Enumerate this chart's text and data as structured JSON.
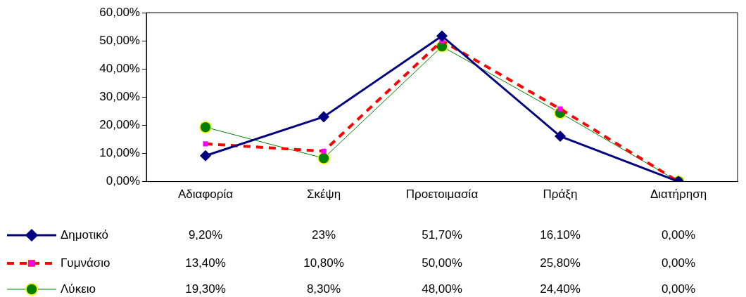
{
  "chart_data": {
    "type": "line",
    "categories": [
      "Αδιαφορία",
      "Σκέψη",
      "Προετοιμασία",
      "Πράξη",
      "Διατήρηση"
    ],
    "ylim": [
      0,
      60
    ],
    "yticks": [
      {
        "value": 0,
        "label": "0,00%"
      },
      {
        "value": 10,
        "label": "10,00%"
      },
      {
        "value": 20,
        "label": "20,00%"
      },
      {
        "value": 30,
        "label": "30,00%"
      },
      {
        "value": 40,
        "label": "40,00%"
      },
      {
        "value": 50,
        "label": "50,00%"
      },
      {
        "value": 60,
        "label": "60,00%"
      }
    ],
    "grid": false,
    "legend": "bottom left",
    "series": [
      {
        "name": "Δημοτικό",
        "color": "#000080",
        "marker": "diamond",
        "line_style": "solid",
        "values": [
          9.2,
          23,
          51.7,
          16.1,
          0
        ],
        "value_labels": [
          "9,20%",
          "23%",
          "51,70%",
          "16,10%",
          "0,00%"
        ]
      },
      {
        "name": "Γυμνάσιο",
        "color": "#ff0000",
        "marker": "square",
        "line_style": "dashed",
        "values": [
          13.4,
          10.8,
          50,
          25.8,
          0
        ],
        "value_labels": [
          "13,40%",
          "10,80%",
          "50,00%",
          "25,80%",
          "0,00%"
        ]
      },
      {
        "name": "Λύκειο",
        "color": "#008000",
        "marker": "circle",
        "line_style": "solid",
        "values": [
          19.3,
          8.3,
          48,
          24.4,
          0
        ],
        "value_labels": [
          "19,30%",
          "8,30%",
          "48,00%",
          "24,40%",
          "0,00%"
        ]
      }
    ]
  }
}
